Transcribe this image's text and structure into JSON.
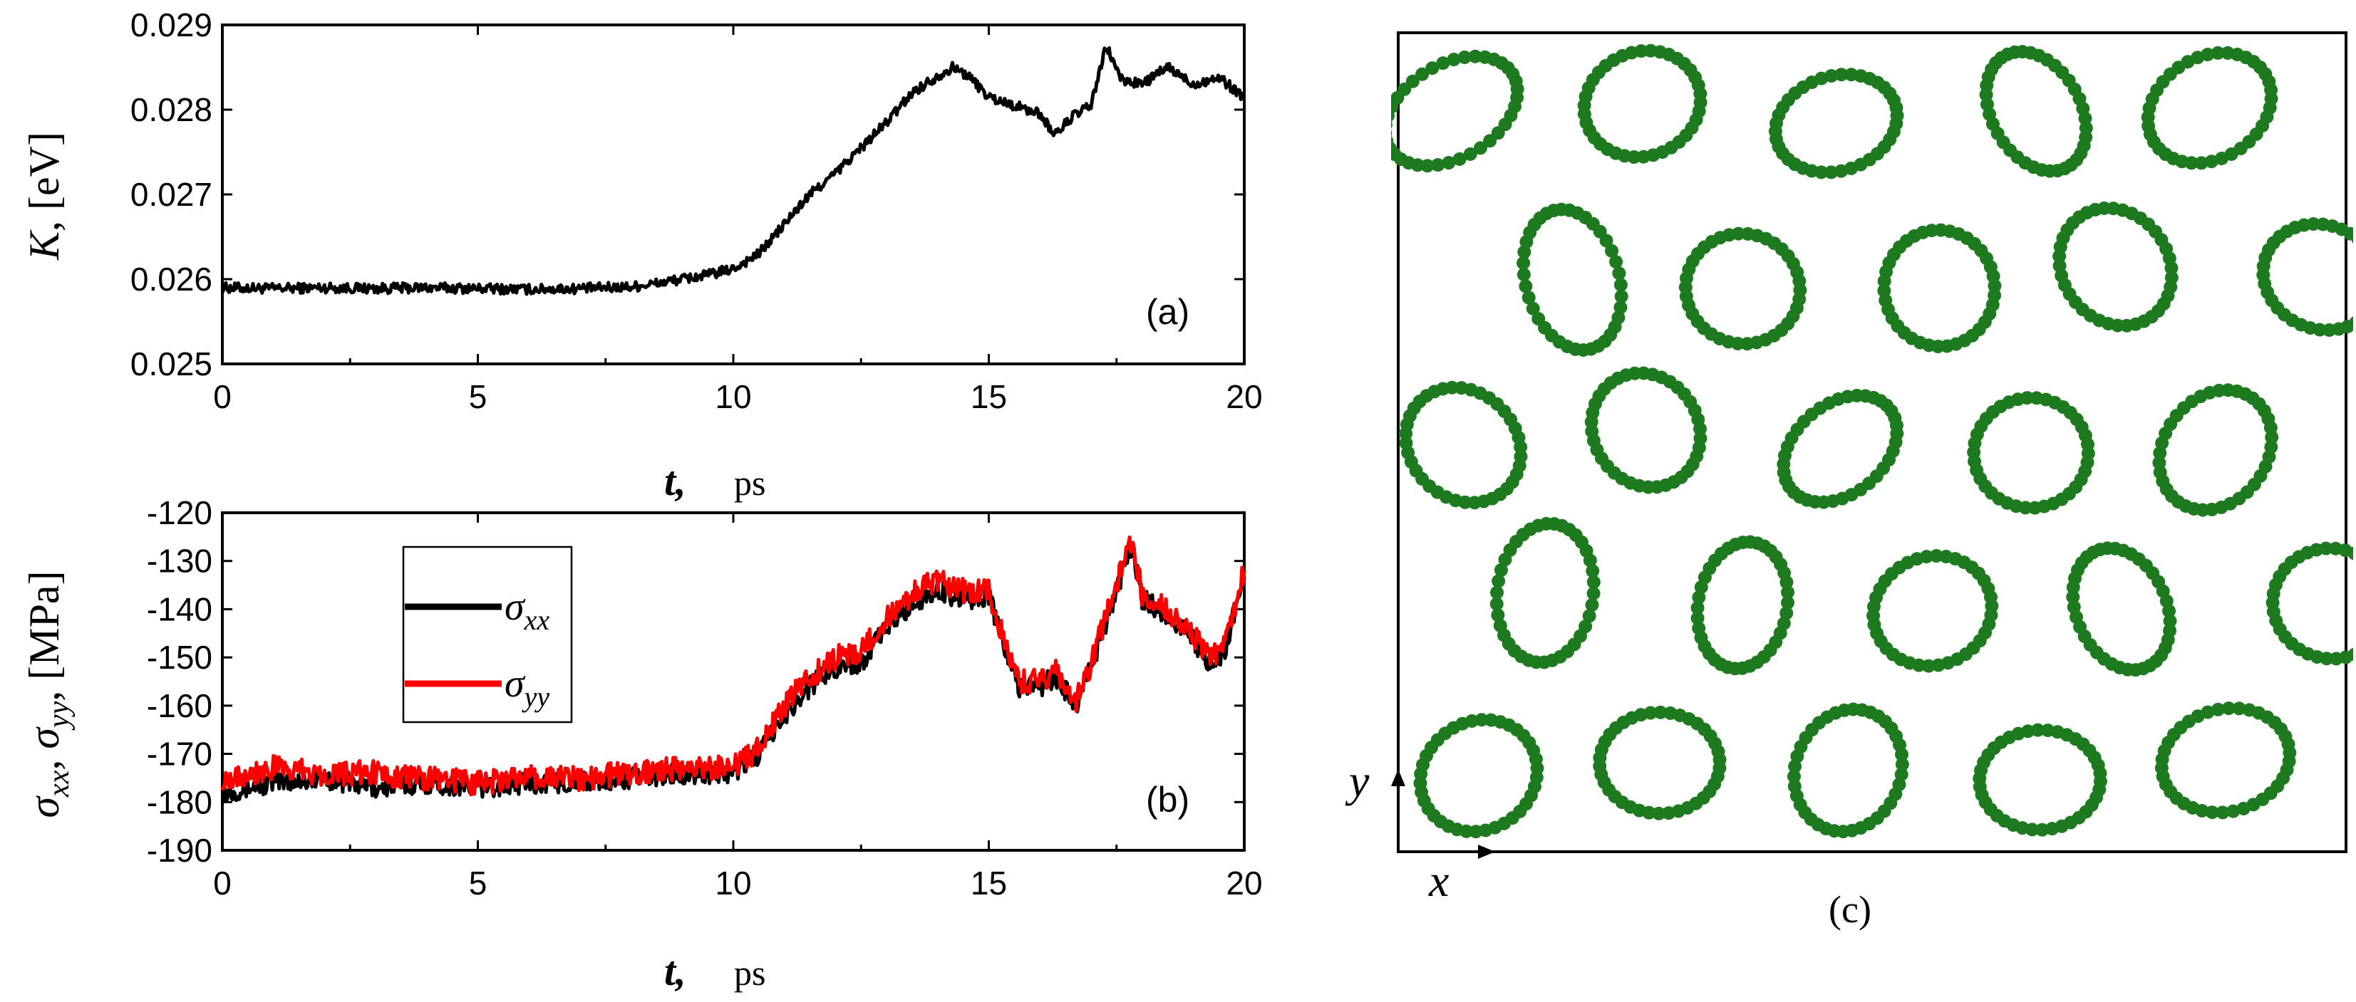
{
  "chart_data": [
    {
      "panel": "(a)",
      "type": "line",
      "xlabel_var": "t,",
      "xlabel_unit": "ps",
      "ylabel_var": "K",
      "ylabel_unit": ", [eV]",
      "xlim": [
        0,
        20
      ],
      "ylim": [
        0.025,
        0.029
      ],
      "xticks": [
        0,
        5,
        10,
        15,
        20
      ],
      "xtick_labels": [
        "0",
        "5",
        "10",
        "15",
        "20"
      ],
      "yticks": [
        0.025,
        0.026,
        0.027,
        0.028,
        0.029
      ],
      "ytick_labels": [
        "0.025",
        "0.026",
        "0.027",
        "0.028",
        "0.029"
      ],
      "series": [
        {
          "name": "K",
          "color": "#000000",
          "noise": 6e-05,
          "x": [
            0,
            1,
            2,
            3,
            4,
            5,
            6,
            7,
            8,
            8.5,
            9,
            9.5,
            10,
            10.5,
            11,
            11.5,
            12,
            12.5,
            13,
            13.5,
            14,
            14.3,
            14.6,
            15,
            15.5,
            16,
            16.3,
            16.6,
            17,
            17.3,
            17.6,
            18,
            18.5,
            19,
            19.5,
            20
          ],
          "y": [
            0.0259,
            0.02589,
            0.0259,
            0.02589,
            0.0259,
            0.02589,
            0.02588,
            0.02589,
            0.02591,
            0.02595,
            0.026,
            0.02605,
            0.02612,
            0.0263,
            0.02665,
            0.027,
            0.02725,
            0.02755,
            0.02785,
            0.0282,
            0.0284,
            0.0285,
            0.0284,
            0.02815,
            0.02805,
            0.02795,
            0.0277,
            0.0279,
            0.02805,
            0.02875,
            0.02835,
            0.0283,
            0.0285,
            0.0283,
            0.02838,
            0.02815
          ]
        }
      ]
    },
    {
      "panel": "(b)",
      "type": "line",
      "xlabel_var": "t,",
      "xlabel_unit": "ps",
      "ylabel_parts": [
        "σ",
        "xx",
        ",  σ",
        "yy",
        ",  [MPa]"
      ],
      "xlim": [
        0,
        20
      ],
      "ylim": [
        -190,
        -120
      ],
      "xticks": [
        0,
        5,
        10,
        15,
        20
      ],
      "xtick_labels": [
        "0",
        "5",
        "10",
        "15",
        "20"
      ],
      "yticks": [
        -190,
        -180,
        -170,
        -160,
        -150,
        -140,
        -130,
        -120
      ],
      "ytick_labels": [
        "-190",
        "-180",
        "-170",
        "-160",
        "-150",
        "-140",
        "-130",
        "-120"
      ],
      "legend_position": "upper-left",
      "series": [
        {
          "name": "σxx",
          "legend_base": "σ",
          "legend_sub": "xx",
          "color": "#000000",
          "noise": 2.2,
          "x": [
            0,
            1,
            2,
            3,
            4,
            5,
            6,
            7,
            8,
            9,
            10,
            10.5,
            11,
            11.5,
            12,
            12.5,
            13,
            13.5,
            14,
            14.5,
            15,
            15.3,
            15.6,
            16,
            16.3,
            16.7,
            17,
            17.5,
            17.8,
            18,
            18.5,
            19,
            19.3,
            19.6,
            20
          ],
          "y": [
            -178,
            -176,
            -175,
            -177,
            -176,
            -177,
            -176,
            -176,
            -175,
            -174,
            -174,
            -170,
            -162,
            -156,
            -152,
            -151,
            -144,
            -139,
            -136,
            -138,
            -137,
            -148,
            -156,
            -156,
            -154,
            -160,
            -152,
            -136,
            -127,
            -138,
            -141,
            -146,
            -152,
            -149,
            -133
          ]
        },
        {
          "name": "σyy",
          "legend_base": "σ",
          "legend_sub": "yy",
          "color": "#ff0000",
          "noise": 2.6,
          "x": [
            0,
            1,
            2,
            3,
            4,
            5,
            6,
            7,
            8,
            9,
            10,
            10.5,
            11,
            11.5,
            12,
            12.5,
            13,
            13.5,
            14,
            14.5,
            15,
            15.3,
            15.6,
            16,
            16.3,
            16.7,
            17,
            17.5,
            17.8,
            18,
            18.5,
            19,
            19.3,
            19.6,
            20
          ],
          "y": [
            -175,
            -173,
            -174,
            -174,
            -175,
            -176,
            -175,
            -175,
            -174,
            -173,
            -173,
            -169,
            -160,
            -154,
            -150,
            -149,
            -142,
            -137,
            -134,
            -136,
            -136,
            -147,
            -155,
            -155,
            -153,
            -159,
            -151,
            -135,
            -125,
            -137,
            -140,
            -145,
            -150,
            -148,
            -132
          ]
        }
      ]
    },
    {
      "panel": "(c)",
      "type": "scatter",
      "description_axes": [
        "x",
        "y"
      ],
      "point_color": "#1e7a1e",
      "x_label": "x",
      "y_label": "y"
    }
  ]
}
